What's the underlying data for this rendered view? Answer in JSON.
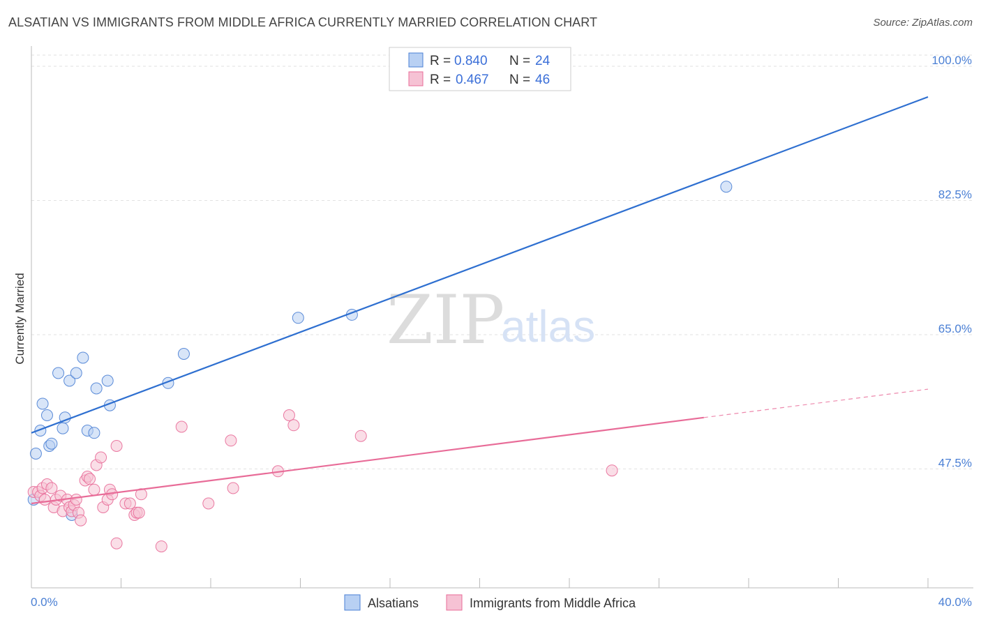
{
  "title": "ALSATIAN VS IMMIGRANTS FROM MIDDLE AFRICA CURRENTLY MARRIED CORRELATION CHART",
  "source": "Source: ZipAtlas.com",
  "watermark": {
    "zip": "ZIP",
    "atlas": "atlas"
  },
  "colors": {
    "blue": "#4a7fd4",
    "blue_line": "#2e6fd0",
    "pink": "#e86c98",
    "blue_fill": "#b8d0f3",
    "pink_fill": "#f6c2d4"
  },
  "legend": {
    "r_label": "R =",
    "n_label": "N =",
    "series": [
      {
        "r": "0.840",
        "n": "24"
      },
      {
        "r": "0.467",
        "n": "46"
      }
    ]
  },
  "chart_data": {
    "type": "scatter",
    "title": "ALSATIAN VS IMMIGRANTS FROM MIDDLE AFRICA CURRENTLY MARRIED CORRELATION CHART",
    "xlabel": "",
    "ylabel": "Currently Married",
    "xlim": [
      0,
      40
    ],
    "ylim": [
      32,
      102
    ],
    "x_tick_labels": [
      "0.0%",
      "40.0%"
    ],
    "y_ticks": [
      47.5,
      65.0,
      82.5,
      100.0
    ],
    "y_tick_labels": [
      "47.5%",
      "65.0%",
      "82.5%",
      "100.0%"
    ],
    "legend_position": "top-center",
    "series": [
      {
        "name": "Alsatians",
        "color": "#4a7fd4",
        "points": [
          [
            0.1,
            43.5
          ],
          [
            0.2,
            49.5
          ],
          [
            0.4,
            52.5
          ],
          [
            0.5,
            56.0
          ],
          [
            0.7,
            54.5
          ],
          [
            0.8,
            50.5
          ],
          [
            0.9,
            50.8
          ],
          [
            1.2,
            60.0
          ],
          [
            1.4,
            52.8
          ],
          [
            1.5,
            54.2
          ],
          [
            1.7,
            59.0
          ],
          [
            1.8,
            41.5
          ],
          [
            2.0,
            60.0
          ],
          [
            2.3,
            62.0
          ],
          [
            2.5,
            52.5
          ],
          [
            2.8,
            52.2
          ],
          [
            2.9,
            58.0
          ],
          [
            3.4,
            59.0
          ],
          [
            3.5,
            55.8
          ],
          [
            6.1,
            58.7
          ],
          [
            6.8,
            62.5
          ],
          [
            11.9,
            67.2
          ],
          [
            14.3,
            67.6
          ],
          [
            31.0,
            84.3
          ]
        ],
        "trend": {
          "x": [
            0,
            40
          ],
          "y": [
            52.2,
            96.0
          ]
        }
      },
      {
        "name": "Immigrants from Middle Africa",
        "color": "#e86c98",
        "points": [
          [
            0.1,
            44.5
          ],
          [
            0.3,
            44.5
          ],
          [
            0.4,
            44.0
          ],
          [
            0.5,
            45.0
          ],
          [
            0.6,
            43.5
          ],
          [
            0.7,
            45.5
          ],
          [
            0.9,
            45.0
          ],
          [
            1.0,
            42.5
          ],
          [
            1.1,
            43.5
          ],
          [
            1.3,
            44.0
          ],
          [
            1.4,
            42.0
          ],
          [
            1.6,
            43.5
          ],
          [
            1.7,
            42.5
          ],
          [
            1.8,
            42.0
          ],
          [
            1.9,
            42.8
          ],
          [
            2.0,
            43.5
          ],
          [
            2.1,
            41.8
          ],
          [
            2.2,
            40.8
          ],
          [
            2.4,
            46.0
          ],
          [
            2.5,
            46.5
          ],
          [
            2.6,
            46.2
          ],
          [
            2.8,
            44.8
          ],
          [
            2.9,
            48.0
          ],
          [
            3.1,
            49.0
          ],
          [
            3.2,
            42.5
          ],
          [
            3.4,
            43.5
          ],
          [
            3.5,
            44.8
          ],
          [
            3.6,
            44.2
          ],
          [
            3.8,
            50.5
          ],
          [
            3.8,
            37.8
          ],
          [
            4.2,
            43.0
          ],
          [
            4.4,
            43.0
          ],
          [
            4.6,
            41.5
          ],
          [
            4.7,
            41.8
          ],
          [
            4.8,
            41.8
          ],
          [
            4.9,
            44.2
          ],
          [
            5.8,
            37.4
          ],
          [
            6.7,
            53.0
          ],
          [
            7.9,
            43.0
          ],
          [
            8.9,
            51.2
          ],
          [
            9.0,
            45.0
          ],
          [
            11.0,
            47.2
          ],
          [
            11.5,
            54.5
          ],
          [
            11.7,
            53.2
          ],
          [
            14.7,
            51.8
          ],
          [
            25.9,
            47.3
          ]
        ],
        "trend": {
          "x": [
            0,
            30
          ],
          "y": [
            43.0,
            54.2
          ]
        },
        "trend_extension": {
          "x": [
            30,
            40
          ],
          "y": [
            54.2,
            57.9
          ]
        }
      }
    ]
  }
}
